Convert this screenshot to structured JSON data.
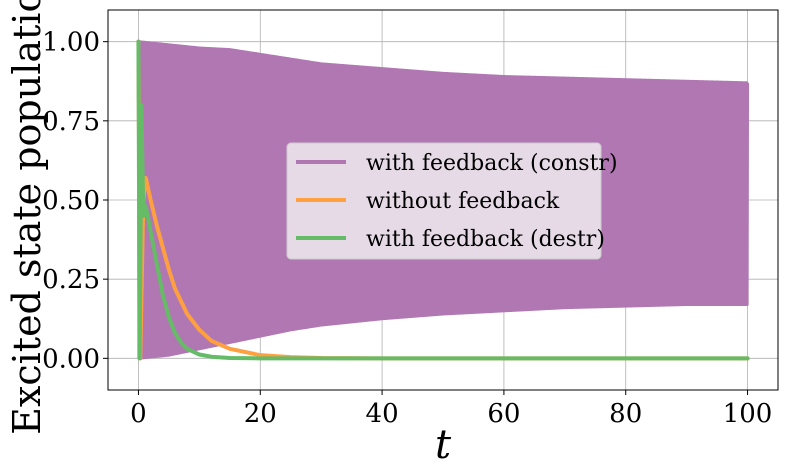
{
  "chart_data": {
    "type": "line",
    "title": "",
    "xlabel": "t",
    "ylabel": "Excited state population",
    "xlim": [
      -5,
      105
    ],
    "ylim": [
      -0.1,
      1.1
    ],
    "x_ticks": [
      0,
      20,
      40,
      60,
      80,
      100
    ],
    "x_tick_labels": [
      "0",
      "20",
      "40",
      "60",
      "80",
      "100"
    ],
    "y_ticks": [
      0.0,
      0.25,
      0.5,
      0.75,
      1.0
    ],
    "y_tick_labels": [
      "0.00",
      "0.25",
      "0.50",
      "0.75",
      "1.00"
    ],
    "grid": true,
    "legend_placement": "center-right",
    "series": [
      {
        "name": "with feedback (constr)",
        "color": "#b077b3",
        "style": "fast-oscillation-envelope",
        "x": [
          0,
          5,
          10,
          15,
          20,
          25,
          30,
          40,
          50,
          60,
          70,
          80,
          90,
          100
        ],
        "upper": [
          1.0,
          0.99,
          0.98,
          0.975,
          0.96,
          0.945,
          0.93,
          0.915,
          0.9,
          0.89,
          0.885,
          0.88,
          0.875,
          0.87
        ],
        "lower": [
          0.0,
          0.01,
          0.03,
          0.05,
          0.07,
          0.09,
          0.105,
          0.125,
          0.14,
          0.15,
          0.16,
          0.165,
          0.17,
          0.17
        ]
      },
      {
        "name": "without feedback",
        "color": "#ffa040",
        "style": "line",
        "x": [
          0,
          0.3,
          0.8,
          1.2,
          2,
          3,
          4,
          5,
          6,
          8,
          10,
          12,
          15,
          20,
          25,
          30,
          40,
          60,
          80,
          100
        ],
        "y": [
          1.0,
          0.0,
          0.5,
          0.57,
          0.5,
          0.42,
          0.35,
          0.28,
          0.22,
          0.14,
          0.09,
          0.055,
          0.03,
          0.01,
          0.004,
          0.001,
          0.0,
          0.0,
          0.0,
          0.0
        ]
      },
      {
        "name": "with feedback (destr)",
        "color": "#66bb66",
        "style": "line",
        "x": [
          0,
          0.2,
          0.5,
          0.8,
          1.2,
          2,
          3,
          4,
          5,
          6,
          7,
          8,
          10,
          12,
          15,
          20,
          30,
          50,
          100
        ],
        "y": [
          1.0,
          0.0,
          0.8,
          0.45,
          0.48,
          0.4,
          0.3,
          0.2,
          0.13,
          0.08,
          0.05,
          0.03,
          0.012,
          0.005,
          0.001,
          0.0,
          0.0,
          0.0,
          0.0
        ]
      }
    ]
  }
}
